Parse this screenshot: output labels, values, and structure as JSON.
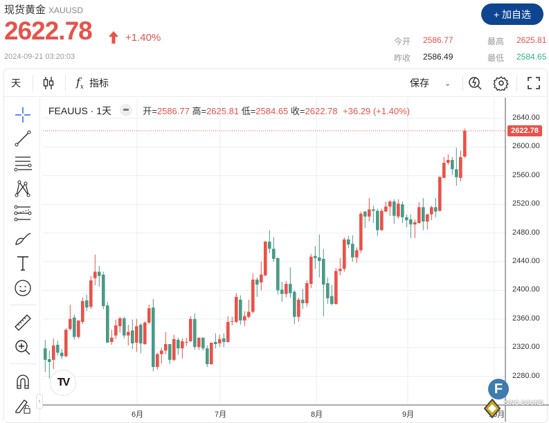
{
  "header": {
    "title": "现货黄金",
    "symbol": "XAUUSD",
    "price": "2622.78",
    "change": "+1.40%",
    "timestamp": "2024-09-21 03:20:03",
    "add_button": "+ 加自选",
    "stats": [
      {
        "label": "今开",
        "value": "2586.77",
        "color": "#e8524a"
      },
      {
        "label": "最高",
        "value": "2625.81",
        "color": "#e8524a"
      },
      {
        "label": "昨收",
        "value": "2586.49",
        "color": "#222222"
      },
      {
        "label": "最低",
        "value": "2584.65",
        "color": "#2fb384"
      }
    ]
  },
  "toolbar": {
    "interval": "天",
    "indicators": "指标",
    "save": "保存",
    "icons": [
      "candlestick-icon",
      "function-icon",
      "chevron-down-icon",
      "quick-search-icon",
      "gear-icon",
      "fullscreen-icon"
    ]
  },
  "left_tools": [
    "crosshair-icon",
    "trend-line-icon",
    "fib-lines-icon",
    "pattern-icon",
    "parallel-channel-icon",
    "brush-icon",
    "text-icon",
    "emoji-icon",
    "ruler-icon",
    "zoom-in-icon",
    "magnet-icon",
    "lock-pencil-icon"
  ],
  "legend": {
    "name": "FEAUUS · 1天",
    "open_k": "开=",
    "open": "2586.77",
    "high_k": "高=",
    "high": "2625.81",
    "low_k": "低=",
    "low": "2584.65",
    "close_k": "收=",
    "close": "2622.78",
    "change": "+36.29 (+1.40%)"
  },
  "colors": {
    "up": "#e8524a",
    "down": "#4a9a86",
    "accent": "#0d4590",
    "crosshair": "#2962ff"
  },
  "chart_data": {
    "type": "candlestick",
    "ylim": [
      2260,
      2660
    ],
    "y_ticks": [
      "2640.00",
      "2600.00",
      "2560.00",
      "2520.00",
      "2480.00",
      "2440.00",
      "2400.00",
      "2360.00",
      "2320.00",
      "2280.00"
    ],
    "x_ticks": [
      "6月",
      "7月",
      "8月",
      "9月",
      "10月"
    ],
    "last_price": "2622.78",
    "ohlc": [
      [
        2319,
        2331,
        2286,
        2303
      ],
      [
        2304,
        2316,
        2277,
        2300
      ],
      [
        2303,
        2333,
        2290,
        2323
      ],
      [
        2324,
        2330,
        2309,
        2313
      ],
      [
        2313,
        2318,
        2304,
        2308
      ],
      [
        2308,
        2347,
        2307,
        2345
      ],
      [
        2346,
        2380,
        2344,
        2360
      ],
      [
        2362,
        2366,
        2331,
        2335
      ],
      [
        2335,
        2358,
        2333,
        2358
      ],
      [
        2356,
        2390,
        2353,
        2385
      ],
      [
        2386,
        2394,
        2371,
        2376
      ],
      [
        2377,
        2420,
        2374,
        2414
      ],
      [
        2417,
        2450,
        2407,
        2426
      ],
      [
        2426,
        2434,
        2405,
        2420
      ],
      [
        2422,
        2426,
        2374,
        2378
      ],
      [
        2379,
        2384,
        2327,
        2327
      ],
      [
        2328,
        2345,
        2324,
        2334
      ],
      [
        2337,
        2359,
        2332,
        2351
      ],
      [
        2350,
        2363,
        2341,
        2361
      ],
      [
        2361,
        2363,
        2333,
        2337
      ],
      [
        2337,
        2352,
        2323,
        2342
      ],
      [
        2344,
        2359,
        2318,
        2326
      ],
      [
        2327,
        2360,
        2314,
        2350
      ],
      [
        2352,
        2354,
        2312,
        2326
      ],
      [
        2325,
        2357,
        2324,
        2355
      ],
      [
        2355,
        2380,
        2353,
        2375
      ],
      [
        2376,
        2388,
        2287,
        2293
      ],
      [
        2293,
        2313,
        2289,
        2311
      ],
      [
        2311,
        2320,
        2298,
        2316
      ],
      [
        2316,
        2342,
        2311,
        2325
      ],
      [
        2325,
        2325,
        2297,
        2303
      ],
      [
        2303,
        2338,
        2301,
        2332
      ],
      [
        2331,
        2334,
        2310,
        2319
      ],
      [
        2319,
        2333,
        2305,
        2329
      ],
      [
        2328,
        2334,
        2322,
        2328
      ],
      [
        2329,
        2364,
        2328,
        2360
      ],
      [
        2360,
        2368,
        2317,
        2321
      ],
      [
        2321,
        2334,
        2317,
        2334
      ],
      [
        2334,
        2334,
        2316,
        2319
      ],
      [
        2319,
        2323,
        2293,
        2297
      ],
      [
        2297,
        2327,
        2296,
        2327
      ],
      [
        2328,
        2340,
        2319,
        2325
      ],
      [
        2326,
        2338,
        2321,
        2332
      ],
      [
        2333,
        2340,
        2321,
        2328
      ],
      [
        2328,
        2364,
        2327,
        2356
      ],
      [
        2357,
        2363,
        2351,
        2357
      ],
      [
        2356,
        2396,
        2354,
        2391
      ],
      [
        2387,
        2393,
        2352,
        2358
      ],
      [
        2358,
        2371,
        2350,
        2364
      ],
      [
        2363,
        2387,
        2361,
        2370
      ],
      [
        2370,
        2424,
        2368,
        2415
      ],
      [
        2415,
        2418,
        2391,
        2408
      ],
      [
        2411,
        2440,
        2400,
        2422
      ],
      [
        2421,
        2469,
        2420,
        2468
      ],
      [
        2468,
        2484,
        2452,
        2458
      ],
      [
        2458,
        2474,
        2440,
        2444
      ],
      [
        2445,
        2446,
        2394,
        2400
      ],
      [
        2401,
        2412,
        2384,
        2395
      ],
      [
        2395,
        2413,
        2390,
        2409
      ],
      [
        2409,
        2432,
        2390,
        2396
      ],
      [
        2398,
        2400,
        2353,
        2363
      ],
      [
        2363,
        2390,
        2356,
        2387
      ],
      [
        2387,
        2402,
        2374,
        2382
      ],
      [
        2382,
        2414,
        2377,
        2410
      ],
      [
        2409,
        2451,
        2403,
        2447
      ],
      [
        2448,
        2462,
        2430,
        2445
      ],
      [
        2446,
        2478,
        2418,
        2441
      ],
      [
        2444,
        2458,
        2364,
        2408
      ],
      [
        2410,
        2418,
        2381,
        2389
      ],
      [
        2392,
        2407,
        2379,
        2381
      ],
      [
        2381,
        2431,
        2380,
        2427
      ],
      [
        2427,
        2445,
        2421,
        2430
      ],
      [
        2430,
        2474,
        2426,
        2471
      ],
      [
        2471,
        2476,
        2459,
        2464
      ],
      [
        2465,
        2477,
        2440,
        2446
      ],
      [
        2446,
        2460,
        2438,
        2456
      ],
      [
        2456,
        2510,
        2452,
        2507
      ],
      [
        2510,
        2511,
        2487,
        2503
      ],
      [
        2503,
        2529,
        2496,
        2513
      ],
      [
        2513,
        2518,
        2494,
        2511
      ],
      [
        2511,
        2514,
        2476,
        2484
      ],
      [
        2484,
        2514,
        2483,
        2511
      ],
      [
        2510,
        2524,
        2509,
        2517
      ],
      [
        2517,
        2526,
        2504,
        2524
      ],
      [
        2524,
        2527,
        2493,
        2504
      ],
      [
        2503,
        2527,
        2500,
        2521
      ],
      [
        2520,
        2524,
        2494,
        2502
      ],
      [
        2502,
        2506,
        2488,
        2498
      ],
      [
        2499,
        2506,
        2473,
        2492
      ],
      [
        2492,
        2499,
        2473,
        2495
      ],
      [
        2494,
        2523,
        2493,
        2516
      ],
      [
        2516,
        2529,
        2484,
        2496
      ],
      [
        2496,
        2507,
        2485,
        2506
      ],
      [
        2506,
        2518,
        2498,
        2516
      ],
      [
        2516,
        2529,
        2502,
        2510
      ],
      [
        2511,
        2560,
        2510,
        2558
      ],
      [
        2557,
        2586,
        2556,
        2578
      ],
      [
        2578,
        2590,
        2575,
        2582
      ],
      [
        2582,
        2586,
        2561,
        2569
      ],
      [
        2569,
        2599,
        2546,
        2558
      ],
      [
        2557,
        2595,
        2552,
        2586
      ],
      [
        2586.77,
        2625.81,
        2584.65,
        2622.78
      ]
    ]
  }
}
